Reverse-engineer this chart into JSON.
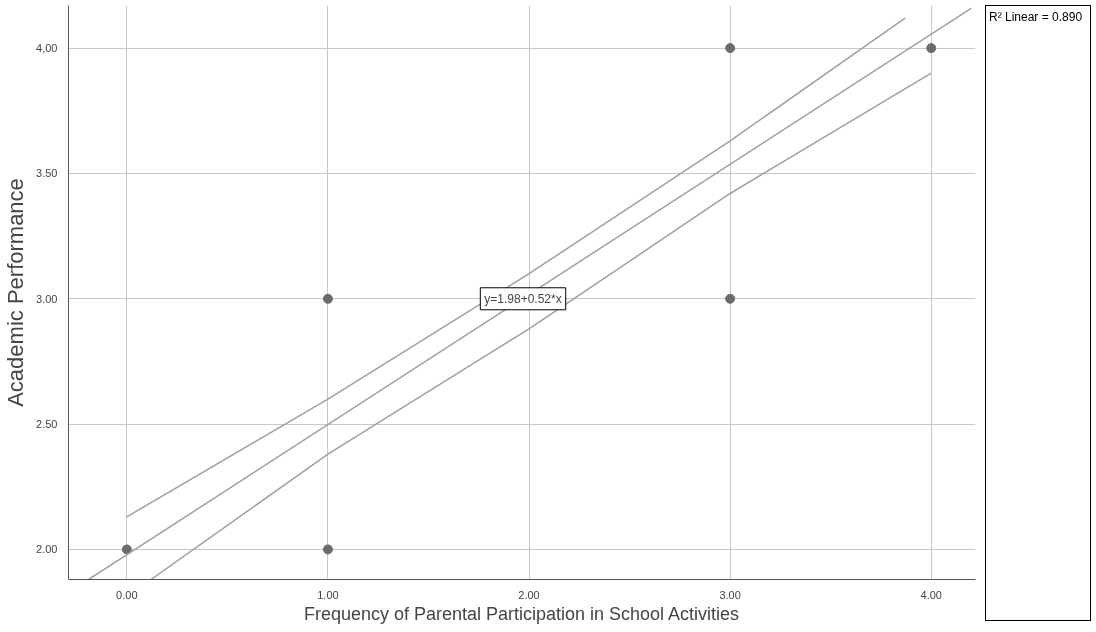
{
  "chart_data": {
    "type": "scatter",
    "xlabel": "Frequency of Parental Participation in School Activities",
    "ylabel": "Academic Performance",
    "xlim": [
      -0.29,
      4.22
    ],
    "ylim": [
      1.88,
      4.17
    ],
    "xticks": [
      {
        "value": 0,
        "label": "0.00"
      },
      {
        "value": 1,
        "label": "1.00"
      },
      {
        "value": 2,
        "label": "2.00"
      },
      {
        "value": 3,
        "label": "3.00"
      },
      {
        "value": 4,
        "label": "4.00"
      }
    ],
    "yticks": [
      {
        "value": 2,
        "label": "2.00"
      },
      {
        "value": 2.5,
        "label": "2.50"
      },
      {
        "value": 3,
        "label": "3.00"
      },
      {
        "value": 3.5,
        "label": "3.50"
      },
      {
        "value": 4,
        "label": "4,00"
      }
    ],
    "grid": true,
    "series": [
      {
        "marker": "circle",
        "color": "#6b6b6b",
        "x": [
          0,
          1,
          1,
          3,
          3,
          4
        ],
        "values": [
          2,
          3,
          2,
          4,
          3,
          4
        ]
      },
      {
        "type": "line",
        "marker": "none",
        "color": "#a0a0a0",
        "x": [
          -0.19,
          4.2
        ],
        "values": [
          1.88,
          4.16
        ]
      },
      {
        "type": "line",
        "marker": "none",
        "color": "#a0a0a0",
        "x": [
          0,
          1,
          2,
          3,
          3.87
        ],
        "values": [
          2.13,
          2.6,
          3.1,
          3.63,
          4.12
        ]
      },
      {
        "type": "line",
        "marker": "none",
        "color": "#a0a0a0",
        "x": [
          0.12,
          1,
          2,
          3,
          4
        ],
        "values": [
          1.88,
          2.38,
          2.88,
          3.42,
          3.9
        ]
      }
    ],
    "annotations": [
      {
        "text": "y=1.98+0.52*x",
        "x": 1.97,
        "y": 3.0
      },
      "R² Linear = 0.890"
    ]
  }
}
